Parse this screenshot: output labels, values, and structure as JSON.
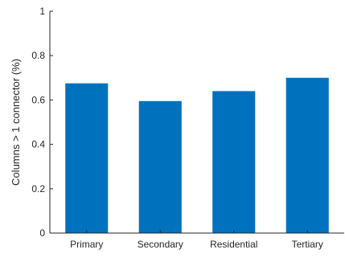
{
  "chart_data": {
    "type": "bar",
    "categories": [
      "Primary",
      "Secondary",
      "Residential",
      "Tertiary"
    ],
    "values": [
      0.675,
      0.595,
      0.64,
      0.7
    ],
    "title": "",
    "xlabel": "",
    "ylabel": "Columns > 1 connector (%)",
    "ylim": [
      0,
      1
    ],
    "yticks": [
      "0",
      "0.2",
      "0.4",
      "0.6",
      "0.8",
      "1"
    ],
    "grid": false,
    "bar_color": "#0072bd",
    "axis_color": "#262626"
  }
}
